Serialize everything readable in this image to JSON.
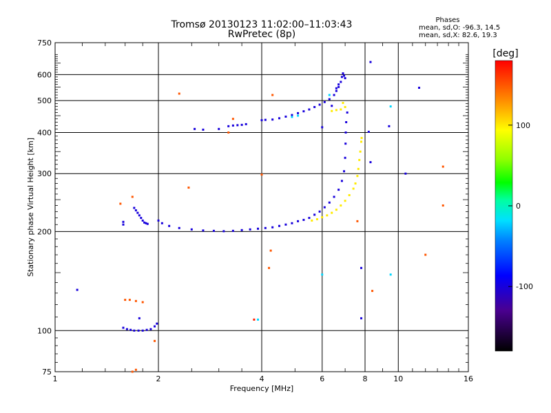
{
  "chart_data": {
    "type": "scatter",
    "title": "Tromsø 20130123 11:02:00–11:03:43",
    "subtitle": "RwPretec (8p)",
    "xlabel": "Frequency [MHz]",
    "ylabel": "Stationary phase Virtual Height [km]",
    "x_scale": "log2",
    "y_scale": "log",
    "xlim": [
      1,
      16
    ],
    "ylim": [
      75,
      750
    ],
    "x_ticks": [
      1,
      2,
      4,
      6,
      8,
      10,
      16
    ],
    "x_tick_labels": [
      "1",
      "2",
      "4",
      "6",
      "8",
      "10",
      "16"
    ],
    "y_ticks": [
      75,
      100,
      200,
      300,
      400,
      500,
      600,
      750
    ],
    "y_tick_labels": [
      "75",
      "100",
      "200",
      "300",
      "400",
      "500",
      "600",
      "750"
    ],
    "grid": true,
    "phases": {
      "heading": "Phases",
      "line_o": "mean, sd,O: -96.3, 14.5",
      "line_x": "mean, sd,X:  82.6, 19.3"
    },
    "colorbar": {
      "label": "[deg]",
      "range": [
        -180,
        180
      ],
      "ticks": [
        100,
        0,
        -100
      ],
      "tick_labels": [
        "100",
        "0",
        "-100"
      ]
    },
    "series": [
      {
        "name": "O-mode (blue)",
        "phase_deg": -100,
        "points": [
          [
            1.58,
            210
          ],
          [
            1.58,
            214
          ],
          [
            1.7,
            236
          ],
          [
            1.72,
            232
          ],
          [
            1.74,
            228
          ],
          [
            1.76,
            224
          ],
          [
            1.78,
            220
          ],
          [
            1.8,
            216
          ],
          [
            1.82,
            213
          ],
          [
            1.84,
            212
          ],
          [
            1.86,
            211
          ],
          [
            2.0,
            216
          ],
          [
            2.05,
            212
          ],
          [
            2.15,
            208
          ],
          [
            2.3,
            205
          ],
          [
            2.5,
            203
          ],
          [
            2.7,
            201.5
          ],
          [
            2.9,
            201
          ],
          [
            3.1,
            200.5
          ],
          [
            3.3,
            201
          ],
          [
            3.5,
            202
          ],
          [
            3.7,
            203
          ],
          [
            3.9,
            204
          ],
          [
            4.1,
            205
          ],
          [
            4.3,
            206
          ],
          [
            4.5,
            208
          ],
          [
            4.7,
            210
          ],
          [
            4.9,
            212
          ],
          [
            5.1,
            215
          ],
          [
            5.3,
            217
          ],
          [
            5.5,
            220
          ],
          [
            5.7,
            225
          ],
          [
            5.9,
            230
          ],
          [
            6.1,
            237
          ],
          [
            6.3,
            245
          ],
          [
            6.5,
            255
          ],
          [
            6.7,
            268
          ],
          [
            6.85,
            285
          ],
          [
            6.95,
            305
          ],
          [
            7.0,
            335
          ],
          [
            7.02,
            370
          ],
          [
            7.03,
            400
          ],
          [
            7.05,
            430
          ],
          [
            7.1,
            460
          ],
          [
            2.55,
            410
          ],
          [
            2.7,
            408
          ],
          [
            3.2,
            418
          ],
          [
            3.3,
            420
          ],
          [
            3.4,
            421
          ],
          [
            3.5,
            422
          ],
          [
            3.6,
            424
          ],
          [
            4.0,
            436
          ],
          [
            4.1,
            437
          ],
          [
            4.3,
            438
          ],
          [
            4.5,
            442
          ],
          [
            4.7,
            447
          ],
          [
            4.9,
            452
          ],
          [
            5.1,
            458
          ],
          [
            5.3,
            464
          ],
          [
            5.5,
            470
          ],
          [
            5.7,
            478
          ],
          [
            5.9,
            486
          ],
          [
            6.1,
            495
          ],
          [
            6.3,
            505
          ],
          [
            6.5,
            520
          ],
          [
            6.6,
            535
          ],
          [
            6.7,
            550
          ],
          [
            6.8,
            570
          ],
          [
            6.85,
            590
          ],
          [
            6.9,
            605
          ],
          [
            6.95,
            595
          ],
          [
            7.0,
            585
          ],
          [
            6.7,
            560
          ],
          [
            6.6,
            545
          ],
          [
            1.58,
            102
          ],
          [
            1.62,
            101
          ],
          [
            1.66,
            100.5
          ],
          [
            1.7,
            100
          ],
          [
            1.75,
            100
          ],
          [
            1.8,
            100
          ],
          [
            1.85,
            100.5
          ],
          [
            1.9,
            101
          ],
          [
            1.95,
            103
          ],
          [
            1.98,
            105
          ],
          [
            1.76,
            109
          ],
          [
            1.16,
            133
          ],
          [
            8.3,
            655
          ],
          [
            8.2,
            402
          ],
          [
            8.3,
            325
          ],
          [
            7.8,
            155
          ],
          [
            7.8,
            109
          ],
          [
            9.4,
            418
          ],
          [
            10.5,
            300
          ],
          [
            11.5,
            547
          ],
          [
            6.0,
            415
          ],
          [
            6.4,
            482
          ],
          [
            3.0,
            410
          ]
        ]
      },
      {
        "name": "X-mode (yellow-green)",
        "phase_deg": 100,
        "points": [
          [
            5.6,
            216
          ],
          [
            5.8,
            218
          ],
          [
            6.0,
            221
          ],
          [
            6.2,
            224
          ],
          [
            6.4,
            228
          ],
          [
            6.6,
            233
          ],
          [
            6.8,
            240
          ],
          [
            7.0,
            248
          ],
          [
            7.2,
            258
          ],
          [
            7.4,
            270
          ],
          [
            7.5,
            280
          ],
          [
            7.6,
            295
          ],
          [
            7.65,
            310
          ],
          [
            7.7,
            330
          ],
          [
            7.75,
            350
          ],
          [
            7.8,
            375
          ],
          [
            7.82,
            385
          ],
          [
            6.9,
            492
          ],
          [
            7.0,
            478
          ],
          [
            6.8,
            470
          ],
          [
            6.6,
            468
          ],
          [
            6.4,
            465
          ]
        ]
      },
      {
        "name": "scattered (cyan)",
        "phase_deg": -20,
        "points": [
          [
            6.0,
            148
          ],
          [
            9.5,
            148
          ],
          [
            9.5,
            480
          ],
          [
            4.9,
            446
          ],
          [
            5.1,
            450
          ],
          [
            6.3,
            520
          ],
          [
            3.9,
            108
          ]
        ]
      },
      {
        "name": "scattered (orange)",
        "phase_deg": 150,
        "points": [
          [
            1.55,
            243
          ],
          [
            1.68,
            255
          ],
          [
            1.6,
            124
          ],
          [
            1.65,
            124
          ],
          [
            1.72,
            123
          ],
          [
            1.8,
            122
          ],
          [
            1.68,
            75
          ],
          [
            1.72,
            76
          ],
          [
            1.95,
            93
          ],
          [
            2.3,
            525
          ],
          [
            2.45,
            272
          ],
          [
            3.3,
            440
          ],
          [
            4.0,
            298
          ],
          [
            4.25,
            175
          ],
          [
            4.2,
            155
          ],
          [
            4.3,
            520
          ],
          [
            8.4,
            132
          ],
          [
            12.0,
            170
          ],
          [
            13.5,
            240
          ],
          [
            13.5,
            315
          ],
          [
            7.6,
            215
          ],
          [
            3.2,
            400
          ]
        ]
      },
      {
        "name": "scattered (red)",
        "phase_deg": 170,
        "points": [
          [
            3.8,
            108
          ]
        ]
      }
    ]
  }
}
